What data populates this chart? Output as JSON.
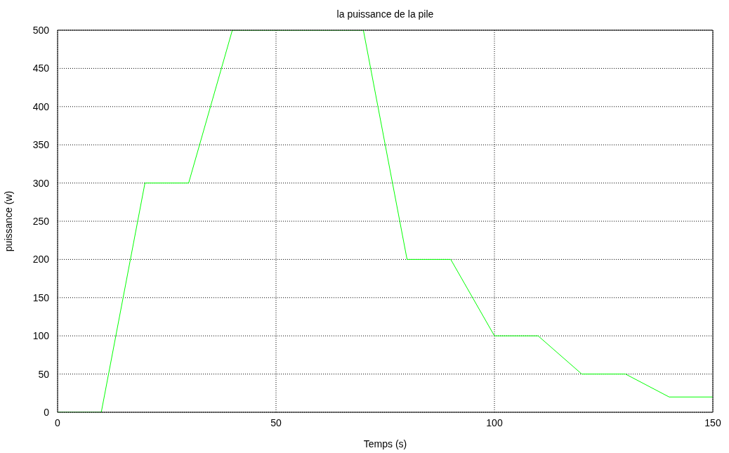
{
  "chart_data": {
    "type": "line",
    "title": "la puissance de la pile",
    "xlabel": "Temps (s)",
    "ylabel": "puissance (w)",
    "x": [
      0,
      10,
      20,
      30,
      40,
      70,
      80,
      90,
      100,
      110,
      120,
      130,
      140,
      150
    ],
    "series": [
      {
        "color": "#00ff00",
        "values": [
          0,
          0,
          300,
          300,
          500,
          500,
          200,
          200,
          100,
          100,
          50,
          50,
          20,
          20
        ]
      }
    ],
    "xlim": [
      0,
      150
    ],
    "xticks": [
      0,
      50,
      100,
      150
    ],
    "ylim": [
      0,
      500
    ],
    "yticks": [
      0,
      50,
      100,
      150,
      200,
      250,
      300,
      350,
      400,
      450,
      500
    ],
    "grid": true,
    "marker": "none",
    "line_style": "solid"
  }
}
